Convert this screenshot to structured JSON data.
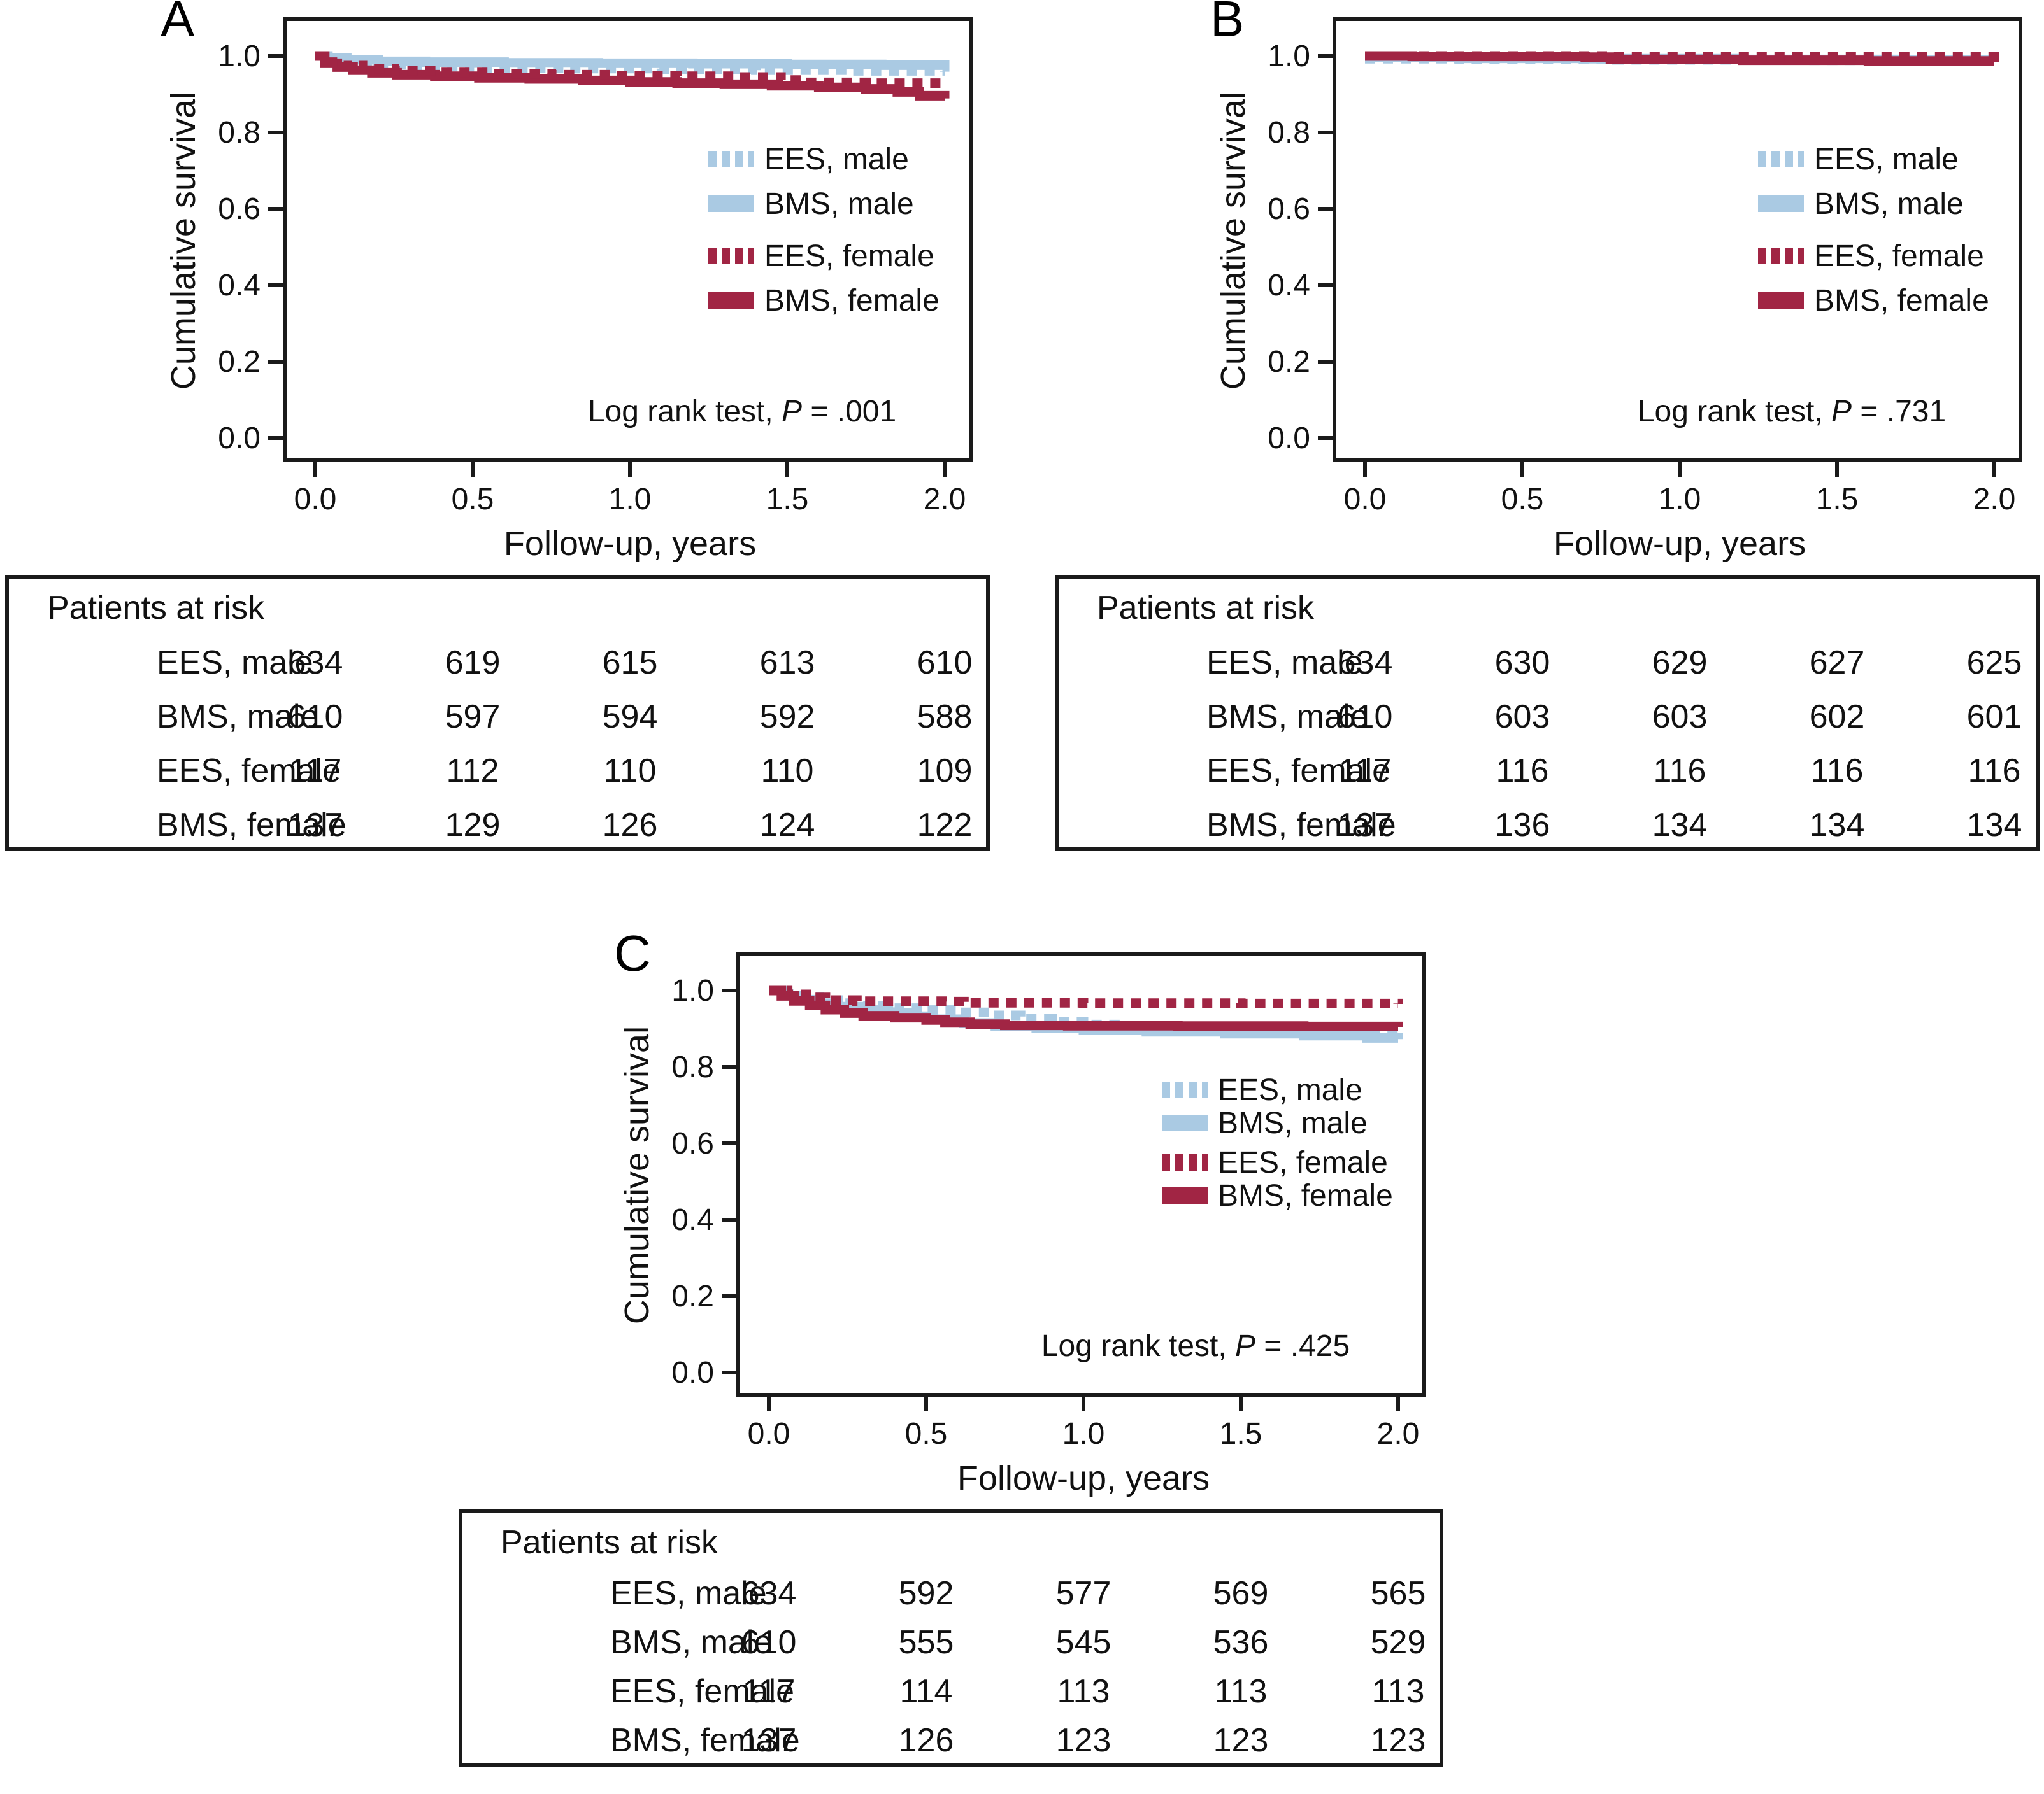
{
  "figure": {
    "panel_letters": [
      "A",
      "B",
      "C"
    ],
    "accent_colors": {
      "light_blue": "#aacae3",
      "dark_red": "#a12544",
      "axis_black": "#1a1a1a"
    }
  },
  "chart_data": [
    {
      "type": "line",
      "panel": "A",
      "subtype": "kaplan-meier-step",
      "xlabel": "Follow-up, years",
      "ylabel": "Cumulative survival",
      "xlim": [
        0.0,
        2.0
      ],
      "ylim": [
        0.0,
        1.05
      ],
      "xticks": [
        0.0,
        0.5,
        1.0,
        1.5,
        2.0
      ],
      "yticks": [
        1.0,
        0.8,
        0.6,
        0.4,
        0.2,
        0.0
      ],
      "xtick_labels": [
        "0.0",
        "0.5",
        "1.0",
        "1.5",
        "2.0"
      ],
      "ytick_labels": [
        "1.0",
        "0.8",
        "0.6",
        "0.4",
        "0.2",
        "0.0"
      ],
      "grid": false,
      "legend_position": "right-upper-middle",
      "p_value": ".001",
      "annotation": {
        "prefix": "Log rank test, ",
        "stat": "P",
        "value": " = .001"
      },
      "series": [
        {
          "name": "EES, male",
          "color": "#aacae3",
          "dash": "dotted",
          "steps": [
            [
              0,
              1
            ],
            [
              0.04,
              0.992
            ],
            [
              0.1,
              0.984
            ],
            [
              0.18,
              0.977
            ],
            [
              0.3,
              0.972
            ],
            [
              0.5,
              0.969
            ],
            [
              0.8,
              0.967
            ],
            [
              1.1,
              0.965
            ],
            [
              1.4,
              0.963
            ],
            [
              1.7,
              0.961
            ],
            [
              2,
              0.959
            ]
          ]
        },
        {
          "name": "BMS, male",
          "color": "#aacae3",
          "dash": "solid",
          "steps": [
            [
              0,
              1
            ],
            [
              0.04,
              0.995
            ],
            [
              0.1,
              0.99
            ],
            [
              0.2,
              0.986
            ],
            [
              0.35,
              0.984
            ],
            [
              0.6,
              0.982
            ],
            [
              0.9,
              0.981
            ],
            [
              1.2,
              0.98
            ],
            [
              1.5,
              0.978
            ],
            [
              1.8,
              0.976
            ],
            [
              2,
              0.975
            ]
          ]
        },
        {
          "name": "EES, female",
          "color": "#a12544",
          "dash": "dotted",
          "steps": [
            [
              0,
              1
            ],
            [
              0.04,
              0.984
            ],
            [
              0.09,
              0.975
            ],
            [
              0.15,
              0.967
            ],
            [
              0.25,
              0.961
            ],
            [
              0.4,
              0.957
            ],
            [
              0.55,
              0.954
            ],
            [
              0.75,
              0.951
            ],
            [
              0.95,
              0.949
            ],
            [
              1.15,
              0.947
            ],
            [
              1.35,
              0.945
            ],
            [
              1.48,
              0.937
            ],
            [
              1.55,
              0.931
            ],
            [
              1.75,
              0.929
            ],
            [
              2,
              0.927
            ]
          ]
        },
        {
          "name": "BMS, female",
          "color": "#a12544",
          "dash": "solid",
          "steps": [
            [
              0,
              1
            ],
            [
              0.03,
              0.981
            ],
            [
              0.07,
              0.971
            ],
            [
              0.12,
              0.963
            ],
            [
              0.18,
              0.956
            ],
            [
              0.26,
              0.951
            ],
            [
              0.38,
              0.947
            ],
            [
              0.52,
              0.943
            ],
            [
              0.68,
              0.94
            ],
            [
              0.85,
              0.936
            ],
            [
              1,
              0.932
            ],
            [
              1.15,
              0.929
            ],
            [
              1.3,
              0.926
            ],
            [
              1.45,
              0.922
            ],
            [
              1.6,
              0.918
            ],
            [
              1.75,
              0.914
            ],
            [
              1.85,
              0.906
            ],
            [
              1.92,
              0.896
            ],
            [
              2,
              0.889
            ]
          ]
        }
      ],
      "patients_at_risk": {
        "title": "Patients at risk",
        "times": [
          0.0,
          0.5,
          1.0,
          1.5,
          2.0
        ],
        "rows": [
          {
            "label": "EES, male",
            "values": [
              "634",
              "619",
              "615",
              "613",
              "610"
            ]
          },
          {
            "label": "BMS, male",
            "values": [
              "610",
              "597",
              "594",
              "592",
              "588"
            ]
          },
          {
            "label": "EES, female",
            "values": [
              "117",
              "112",
              "110",
              "110",
              "109"
            ]
          },
          {
            "label": "BMS, female",
            "values": [
              "137",
              "129",
              "126",
              "124",
              "122"
            ]
          }
        ]
      }
    },
    {
      "type": "line",
      "panel": "B",
      "subtype": "kaplan-meier-step",
      "xlabel": "Follow-up, years",
      "ylabel": "Cumulative survival",
      "xlim": [
        0.0,
        2.0
      ],
      "ylim": [
        0.0,
        1.05
      ],
      "xticks": [
        0.0,
        0.5,
        1.0,
        1.5,
        2.0
      ],
      "yticks": [
        1.0,
        0.8,
        0.6,
        0.4,
        0.2,
        0.0
      ],
      "xtick_labels": [
        "0.0",
        "0.5",
        "1.0",
        "1.5",
        "2.0"
      ],
      "ytick_labels": [
        "1.0",
        "0.8",
        "0.6",
        "0.4",
        "0.2",
        "0.0"
      ],
      "grid": false,
      "legend_position": "right-upper-middle",
      "p_value": ".731",
      "annotation": {
        "prefix": "Log rank test, ",
        "stat": "P",
        "value": " = .731"
      },
      "series": [
        {
          "name": "EES, male",
          "color": "#aacae3",
          "dash": "dotted",
          "steps": [
            [
              0,
              0.993
            ],
            [
              0.3,
              0.992
            ],
            [
              0.8,
              0.99
            ],
            [
              1.4,
              0.989
            ],
            [
              2,
              0.988
            ]
          ]
        },
        {
          "name": "BMS, male",
          "color": "#aacae3",
          "dash": "solid",
          "steps": [
            [
              0,
              0.996
            ],
            [
              0.3,
              0.994
            ],
            [
              0.7,
              0.993
            ],
            [
              1.2,
              0.991
            ],
            [
              1.7,
              0.99
            ],
            [
              2,
              0.989
            ]
          ]
        },
        {
          "name": "EES, female",
          "color": "#a12544",
          "dash": "dotted",
          "steps": [
            [
              0,
              1
            ],
            [
              0.7,
              1
            ],
            [
              0.78,
              0.998
            ],
            [
              1.3,
              0.998
            ],
            [
              2,
              0.997
            ]
          ]
        },
        {
          "name": "BMS, female",
          "color": "#a12544",
          "dash": "solid",
          "steps": [
            [
              0,
              1
            ],
            [
              0.15,
              0.999
            ],
            [
              0.7,
              0.997
            ],
            [
              0.78,
              0.991
            ],
            [
              1.2,
              0.989
            ],
            [
              1.6,
              0.987
            ],
            [
              2,
              0.985
            ]
          ]
        }
      ],
      "patients_at_risk": {
        "title": "Patients at risk",
        "times": [
          0.0,
          0.5,
          1.0,
          1.5,
          2.0
        ],
        "rows": [
          {
            "label": "EES, male",
            "values": [
              "634",
              "630",
              "629",
              "627",
              "625"
            ]
          },
          {
            "label": "BMS, male",
            "values": [
              "610",
              "603",
              "603",
              "602",
              "601"
            ]
          },
          {
            "label": "EES, female",
            "values": [
              "117",
              "116",
              "116",
              "116",
              "116"
            ]
          },
          {
            "label": "BMS, female",
            "values": [
              "137",
              "136",
              "134",
              "134",
              "134"
            ]
          }
        ]
      }
    },
    {
      "type": "line",
      "panel": "C",
      "subtype": "kaplan-meier-step",
      "xlabel": "Follow-up, years",
      "ylabel": "Cumulative survival",
      "xlim": [
        0.0,
        2.0
      ],
      "ylim": [
        0.0,
        1.05
      ],
      "xticks": [
        0.0,
        0.5,
        1.0,
        1.5,
        2.0
      ],
      "yticks": [
        1.0,
        0.8,
        0.6,
        0.4,
        0.2,
        0.0
      ],
      "xtick_labels": [
        "0.0",
        "0.5",
        "1.0",
        "1.5",
        "2.0"
      ],
      "ytick_labels": [
        "1.0",
        "0.8",
        "0.6",
        "0.4",
        "0.2",
        "0.0"
      ],
      "grid": false,
      "legend_position": "right-upper-middle",
      "p_value": ".425",
      "annotation": {
        "prefix": "Log rank test, ",
        "stat": "P",
        "value": " = .425"
      },
      "series": [
        {
          "name": "EES, male",
          "color": "#aacae3",
          "dash": "dotted",
          "steps": [
            [
              0,
              1
            ],
            [
              0.05,
              0.991
            ],
            [
              0.1,
              0.983
            ],
            [
              0.16,
              0.975
            ],
            [
              0.22,
              0.967
            ],
            [
              0.3,
              0.96
            ],
            [
              0.4,
              0.954
            ],
            [
              0.5,
              0.949
            ],
            [
              0.6,
              0.943
            ],
            [
              0.7,
              0.935
            ],
            [
              0.8,
              0.927
            ],
            [
              0.9,
              0.919
            ],
            [
              1,
              0.911
            ],
            [
              1.1,
              0.905
            ],
            [
              1.25,
              0.9
            ],
            [
              1.4,
              0.897
            ],
            [
              1.6,
              0.894
            ],
            [
              1.8,
              0.892
            ],
            [
              2,
              0.89
            ]
          ]
        },
        {
          "name": "BMS, male",
          "color": "#aacae3",
          "dash": "solid",
          "steps": [
            [
              0,
              1
            ],
            [
              0.05,
              0.987
            ],
            [
              0.1,
              0.976
            ],
            [
              0.15,
              0.967
            ],
            [
              0.22,
              0.958
            ],
            [
              0.3,
              0.949
            ],
            [
              0.38,
              0.941
            ],
            [
              0.46,
              0.933
            ],
            [
              0.52,
              0.925
            ],
            [
              0.62,
              0.915
            ],
            [
              0.72,
              0.907
            ],
            [
              0.85,
              0.902
            ],
            [
              1,
              0.897
            ],
            [
              1.2,
              0.892
            ],
            [
              1.45,
              0.887
            ],
            [
              1.7,
              0.882
            ],
            [
              1.9,
              0.876
            ],
            [
              2,
              0.873
            ]
          ]
        },
        {
          "name": "EES, female",
          "color": "#a12544",
          "dash": "dotted",
          "steps": [
            [
              0,
              1
            ],
            [
              0.06,
              0.99
            ],
            [
              0.12,
              0.982
            ],
            [
              0.18,
              0.975
            ],
            [
              0.28,
              0.972
            ],
            [
              0.55,
              0.971
            ],
            [
              0.62,
              0.968
            ],
            [
              1,
              0.967
            ],
            [
              1.5,
              0.966
            ],
            [
              2,
              0.965
            ]
          ]
        },
        {
          "name": "BMS, female",
          "color": "#a12544",
          "dash": "solid",
          "steps": [
            [
              0,
              1
            ],
            [
              0.04,
              0.986
            ],
            [
              0.08,
              0.973
            ],
            [
              0.13,
              0.961
            ],
            [
              0.18,
              0.95
            ],
            [
              0.24,
              0.941
            ],
            [
              0.3,
              0.934
            ],
            [
              0.4,
              0.929
            ],
            [
              0.5,
              0.923
            ],
            [
              0.56,
              0.917
            ],
            [
              0.64,
              0.912
            ],
            [
              0.75,
              0.909
            ],
            [
              0.95,
              0.908
            ],
            [
              1.3,
              0.907
            ],
            [
              1.7,
              0.906
            ],
            [
              2,
              0.905
            ]
          ]
        }
      ],
      "patients_at_risk": {
        "title": "Patients at risk",
        "times": [
          0.0,
          0.5,
          1.0,
          1.5,
          2.0
        ],
        "rows": [
          {
            "label": "EES, male",
            "values": [
              "634",
              "592",
              "577",
              "569",
              "565"
            ]
          },
          {
            "label": "BMS, male",
            "values": [
              "610",
              "555",
              "545",
              "536",
              "529"
            ]
          },
          {
            "label": "EES, female",
            "values": [
              "117",
              "114",
              "113",
              "113",
              "113"
            ]
          },
          {
            "label": "BMS, female",
            "values": [
              "137",
              "126",
              "123",
              "123",
              "123"
            ]
          }
        ]
      }
    }
  ]
}
